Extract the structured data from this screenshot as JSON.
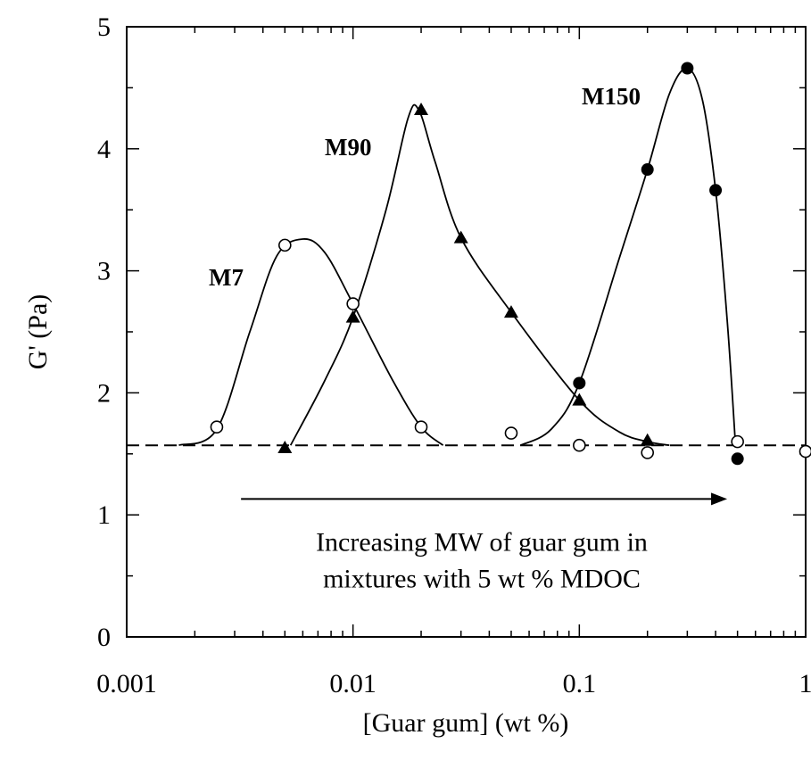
{
  "chart_data": {
    "type": "scatter",
    "xlabel": "[Guar gum] (wt %)",
    "ylabel": "G' (Pa)",
    "xscale": "log",
    "xlim": [
      0.001,
      1
    ],
    "ylim": [
      0,
      5
    ],
    "x_ticks": [
      0.001,
      0.01,
      0.1,
      1
    ],
    "x_tick_labels": [
      "0.001",
      "0.01",
      "0.1",
      "1"
    ],
    "y_ticks": [
      0,
      1,
      2,
      3,
      4,
      5
    ],
    "y_tick_labels": [
      "0",
      "1",
      "2",
      "3",
      "4",
      "5"
    ],
    "grid": false,
    "baseline": {
      "y": 1.57,
      "style": "dashed"
    },
    "series": [
      {
        "name": "M7",
        "marker": "open-circle",
        "points": [
          {
            "x": 0.0025,
            "y": 1.72
          },
          {
            "x": 0.005,
            "y": 3.21
          },
          {
            "x": 0.01,
            "y": 2.73
          },
          {
            "x": 0.02,
            "y": 1.72
          },
          {
            "x": 0.05,
            "y": 1.67
          },
          {
            "x": 0.1,
            "y": 1.57
          },
          {
            "x": 0.2,
            "y": 1.51
          },
          {
            "x": 0.5,
            "y": 1.6
          },
          {
            "x": 1,
            "y": 1.52
          }
        ],
        "curve": [
          {
            "x": 0.0017,
            "y": 1.57
          },
          {
            "x": 0.0025,
            "y": 1.7
          },
          {
            "x": 0.0035,
            "y": 2.5
          },
          {
            "x": 0.0046,
            "y": 3.12
          },
          {
            "x": 0.006,
            "y": 3.26
          },
          {
            "x": 0.0075,
            "y": 3.15
          },
          {
            "x": 0.01,
            "y": 2.73
          },
          {
            "x": 0.015,
            "y": 2.1
          },
          {
            "x": 0.02,
            "y": 1.72
          },
          {
            "x": 0.025,
            "y": 1.57
          }
        ]
      },
      {
        "name": "M90",
        "marker": "filled-triangle",
        "points": [
          {
            "x": 0.005,
            "y": 1.55
          },
          {
            "x": 0.01,
            "y": 2.62
          },
          {
            "x": 0.02,
            "y": 4.32
          },
          {
            "x": 0.03,
            "y": 3.27
          },
          {
            "x": 0.05,
            "y": 2.66
          },
          {
            "x": 0.1,
            "y": 1.94
          },
          {
            "x": 0.2,
            "y": 1.61
          }
        ],
        "curve": [
          {
            "x": 0.0053,
            "y": 1.57
          },
          {
            "x": 0.0075,
            "y": 2.1
          },
          {
            "x": 0.01,
            "y": 2.62
          },
          {
            "x": 0.014,
            "y": 3.5
          },
          {
            "x": 0.0175,
            "y": 4.25
          },
          {
            "x": 0.0195,
            "y": 4.32
          },
          {
            "x": 0.023,
            "y": 3.9
          },
          {
            "x": 0.03,
            "y": 3.27
          },
          {
            "x": 0.05,
            "y": 2.66
          },
          {
            "x": 0.1,
            "y": 1.94
          },
          {
            "x": 0.15,
            "y": 1.68
          },
          {
            "x": 0.2,
            "y": 1.6
          },
          {
            "x": 0.25,
            "y": 1.57
          }
        ]
      },
      {
        "name": "M150",
        "marker": "filled-circle",
        "points": [
          {
            "x": 0.1,
            "y": 2.08
          },
          {
            "x": 0.2,
            "y": 3.83
          },
          {
            "x": 0.3,
            "y": 4.66
          },
          {
            "x": 0.4,
            "y": 3.66
          },
          {
            "x": 0.5,
            "y": 1.46
          }
        ],
        "curve": [
          {
            "x": 0.055,
            "y": 1.57
          },
          {
            "x": 0.075,
            "y": 1.7
          },
          {
            "x": 0.1,
            "y": 2.08
          },
          {
            "x": 0.15,
            "y": 3.1
          },
          {
            "x": 0.2,
            "y": 3.83
          },
          {
            "x": 0.25,
            "y": 4.45
          },
          {
            "x": 0.3,
            "y": 4.66
          },
          {
            "x": 0.35,
            "y": 4.4
          },
          {
            "x": 0.4,
            "y": 3.66
          },
          {
            "x": 0.45,
            "y": 2.6
          },
          {
            "x": 0.49,
            "y": 1.57
          }
        ]
      }
    ],
    "annotations": [
      {
        "text": "Increasing MW of guar gum in",
        "x": 0.05,
        "y": 0.78
      },
      {
        "text": "mixtures with 5 wt % MDOC",
        "x": 0.05,
        "y": 0.48
      }
    ],
    "arrow": {
      "from": {
        "x": 0.0032,
        "y": 1.13
      },
      "to": {
        "x": 0.45,
        "y": 1.13
      }
    }
  }
}
